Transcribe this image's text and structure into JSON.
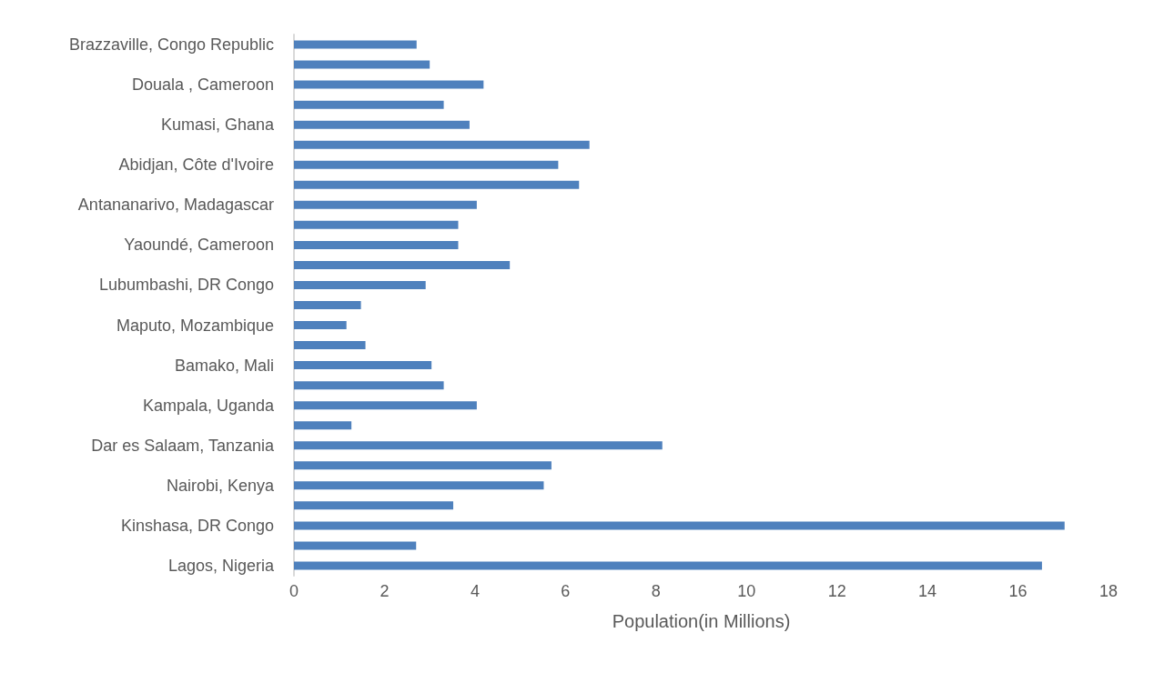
{
  "chart_data": {
    "type": "bar",
    "orientation": "horizontal",
    "xlabel": "Population(in Millions)",
    "categories": [
      "Brazzaville, Congo Republic",
      null,
      "Douala , Cameroon",
      null,
      "Kumasi, Ghana",
      null,
      "Abidjan, Côte d'Ivoire",
      null,
      "Antananarivo, Madagascar",
      null,
      "Yaoundé, Cameroon",
      null,
      "Lubumbashi, DR Congo",
      null,
      "Maputo, Mozambique",
      null,
      "Bamako, Mali",
      null,
      "Kampala, Uganda",
      null,
      "Dar es Salaam, Tanzania",
      null,
      "Nairobi, Kenya",
      null,
      "Kinshasa, DR Congo",
      null,
      "Lagos, Nigeria"
    ],
    "values": [
      2.71,
      3.0,
      4.19,
      3.31,
      3.88,
      6.53,
      5.84,
      6.3,
      4.04,
      3.63,
      3.63,
      4.77,
      2.91,
      1.48,
      1.16,
      1.58,
      3.04,
      3.31,
      4.04,
      1.27,
      8.14,
      5.69,
      5.52,
      3.52,
      17.03,
      2.7,
      16.53
    ],
    "color": "#4f81bd",
    "xlim": [
      0,
      18
    ],
    "xticks": [
      0,
      2,
      4,
      6,
      8,
      10,
      12,
      14,
      16,
      18
    ],
    "grid": false
  }
}
